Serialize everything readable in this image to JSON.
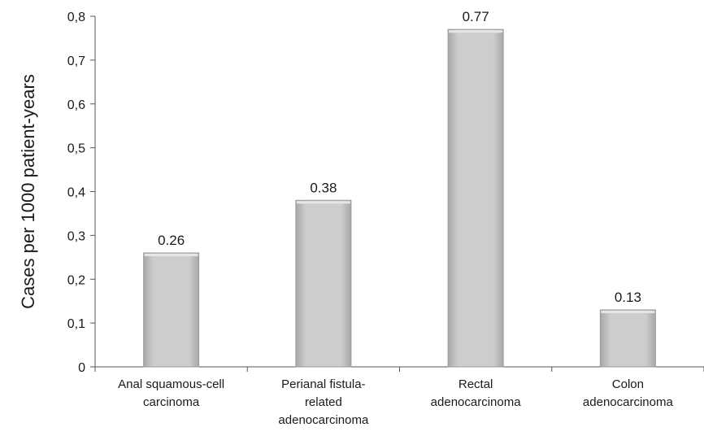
{
  "chart_data": {
    "type": "bar",
    "categories": [
      [
        "Anal squamous-cell",
        "carcinoma"
      ],
      [
        "Perianal fistula-",
        "related",
        "adenocarcinoma"
      ],
      [
        "Rectal",
        "adenocarcinoma"
      ],
      [
        "Colon",
        "adenocarcinoma"
      ]
    ],
    "values": [
      0.26,
      0.38,
      0.77,
      0.13
    ],
    "value_labels": [
      "0.26",
      "0.38",
      "0.77",
      "0.13"
    ],
    "ylabel": "Cases per 1000 patient-years",
    "xlabel": "",
    "title": "",
    "ylim": [
      0,
      0.8
    ],
    "yticks": [
      0,
      0.1,
      0.2,
      0.3,
      0.4,
      0.5,
      0.6,
      0.7,
      0.8
    ],
    "ytick_labels": [
      "0",
      "0,1",
      "0,2",
      "0,3",
      "0,4",
      "0,5",
      "0,6",
      "0,7",
      "0,8"
    ],
    "grid": false,
    "legend": "none",
    "colors": {
      "bar_fill": "#c8c8c8",
      "bar_edge": "#9a9a9a",
      "axis": "#555555"
    }
  }
}
